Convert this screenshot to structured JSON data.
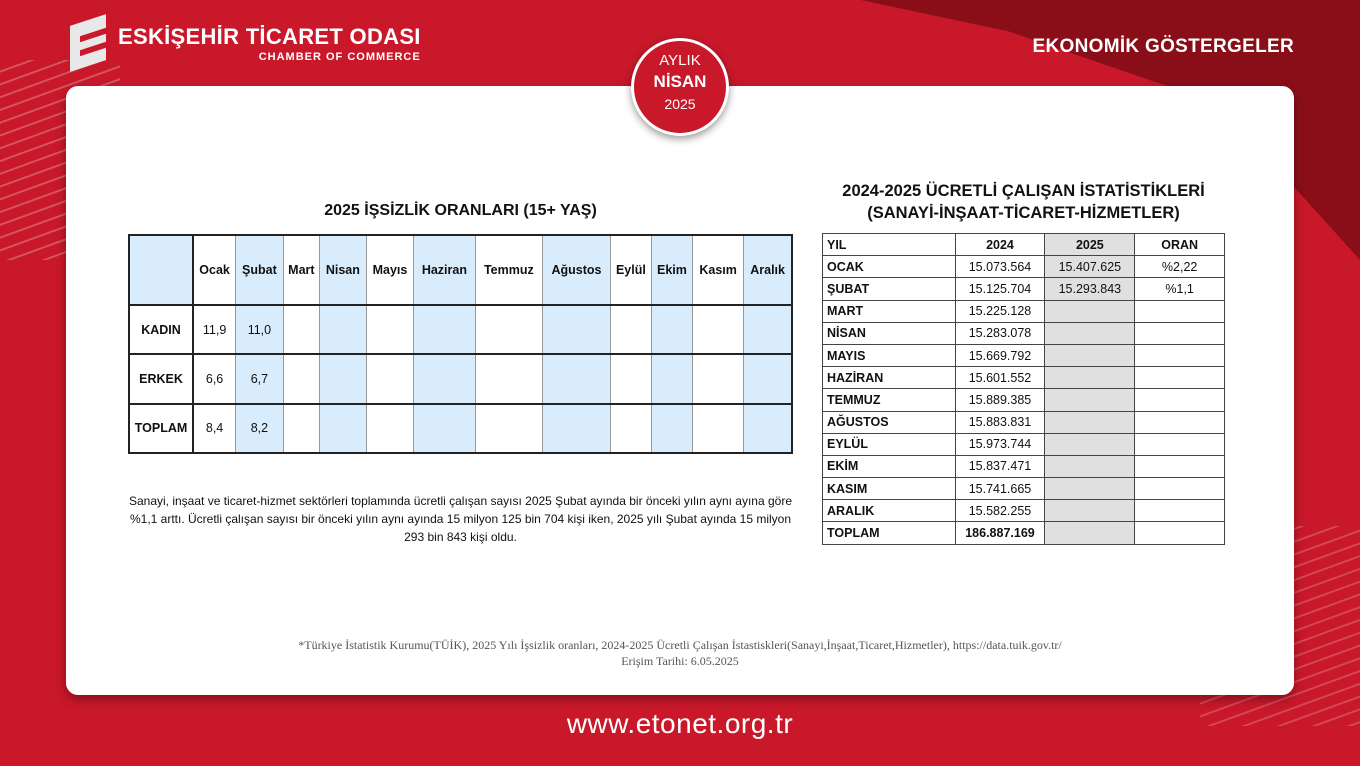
{
  "header": {
    "org_name": "ESKİŞEHİR TİCARET ODASI",
    "org_subtitle": "CHAMBER OF COMMERCE",
    "section_title": "EKONOMİK GÖSTERGELER"
  },
  "badge": {
    "line1": "AYLIK",
    "line2": "NİSAN",
    "line3": "2025"
  },
  "unemployment": {
    "title": "2025 İŞSİZLİK ORANLARI (15+ YAŞ)",
    "months": [
      "Ocak",
      "Şubat",
      "Mart",
      "Nisan",
      "Mayıs",
      "Haziran",
      "Temmuz",
      "Ağustos",
      "Eylül",
      "Ekim",
      "Kasım",
      "Aralık"
    ],
    "rows": [
      {
        "label": "KADIN",
        "values": [
          "11,9",
          "11,0",
          "",
          "",
          "",
          "",
          "",
          "",
          "",
          "",
          "",
          ""
        ]
      },
      {
        "label": "ERKEK",
        "values": [
          "6,6",
          "6,7",
          "",
          "",
          "",
          "",
          "",
          "",
          "",
          "",
          "",
          ""
        ]
      },
      {
        "label": "TOPLAM",
        "values": [
          "8,4",
          "8,2",
          "",
          "",
          "",
          "",
          "",
          "",
          "",
          "",
          "",
          ""
        ]
      }
    ],
    "description": "Sanayi, inşaat ve ticaret-hizmet sektörleri toplamında ücretli çalışan sayısı 2025 Şubat ayında bir önceki yılın aynı ayına göre %1,1 arttı. Ücretli çalışan sayısı bir önceki yılın aynı ayında 15 milyon 125 bin 704 kişi iken, 2025 yılı Şubat ayında 15 milyon 293 bin 843 kişi oldu."
  },
  "wages": {
    "title_line1": "2024-2025 ÜCRETLİ ÇALIŞAN İSTATİSTİKLERİ",
    "title_line2": "(SANAYİ-İNŞAAT-TİCARET-HİZMETLER)",
    "headers": [
      "YIL",
      "2024",
      "2025",
      "ORAN"
    ],
    "rows": [
      {
        "month": "OCAK",
        "y2024": "15.073.564",
        "y2025": "15.407.625",
        "ratio": "%2,22"
      },
      {
        "month": "ŞUBAT",
        "y2024": "15.125.704",
        "y2025": "15.293.843",
        "ratio": "%1,1"
      },
      {
        "month": "MART",
        "y2024": "15.225.128",
        "y2025": "",
        "ratio": ""
      },
      {
        "month": "NİSAN",
        "y2024": "15.283.078",
        "y2025": "",
        "ratio": ""
      },
      {
        "month": "MAYIS",
        "y2024": "15.669.792",
        "y2025": "",
        "ratio": ""
      },
      {
        "month": "HAZİRAN",
        "y2024": "15.601.552",
        "y2025": "",
        "ratio": ""
      },
      {
        "month": "TEMMUZ",
        "y2024": "15.889.385",
        "y2025": "",
        "ratio": ""
      },
      {
        "month": "AĞUSTOS",
        "y2024": "15.883.831",
        "y2025": "",
        "ratio": ""
      },
      {
        "month": "EYLÜL",
        "y2024": "15.973.744",
        "y2025": "",
        "ratio": ""
      },
      {
        "month": "EKİM",
        "y2024": "15.837.471",
        "y2025": "",
        "ratio": ""
      },
      {
        "month": "KASIM",
        "y2024": "15.741.665",
        "y2025": "",
        "ratio": ""
      },
      {
        "month": "ARALIK",
        "y2024": "15.582.255",
        "y2025": "",
        "ratio": ""
      }
    ],
    "total_label": "TOPLAM",
    "total_2024": "186.887.169"
  },
  "footnote": {
    "line1": "*Türkiye İstatistik Kurumu(TÜİK), 2025 Yılı İşsizlik oranları, 2024-2025 Ücretli Çalışan İstastiskleri(Sanayi,İnşaat,Ticaret,Hizmetler), https://data.tuik.gov.tr/",
    "line2": "Erişim Tarihi: 6.05.2025"
  },
  "website": "www.etonet.org.tr"
}
